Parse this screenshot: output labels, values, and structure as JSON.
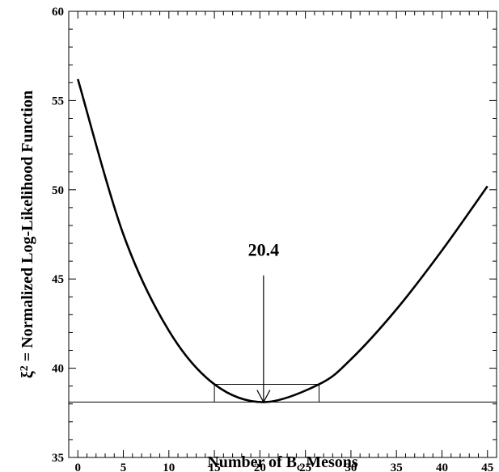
{
  "chart_data": {
    "type": "line",
    "xlabel": {
      "main": "Number of B",
      "sub": "c",
      "rest": " Mesons"
    },
    "ylabel": {
      "pre": "ξ",
      "sup": "2",
      "rest": " = Normalized Log-Likelihood Function"
    },
    "xlim": [
      -1,
      46
    ],
    "ylim": [
      35,
      60
    ],
    "x_ticks": [
      0,
      5,
      10,
      15,
      20,
      25,
      30,
      35,
      40,
      45
    ],
    "y_ticks": [
      35,
      40,
      45,
      50,
      55,
      60
    ],
    "grid": false,
    "series": [
      {
        "x": [
          0,
          5,
          10,
          15,
          20.4,
          26.5,
          30,
          35,
          40,
          45
        ],
        "y": [
          56.2,
          47.5,
          42.1,
          39.1,
          38.1,
          39.1,
          40.5,
          43.3,
          46.6,
          50.2
        ]
      }
    ],
    "minimum": {
      "x": 20.4,
      "y": 38.1
    },
    "min_line": 38.1,
    "one_sigma_line": {
      "y": 39.1,
      "x_low": 15.0,
      "x_high": 26.5
    },
    "annotation": {
      "text": "20.4",
      "x": 20.4,
      "text_y": 46.3,
      "arrow_start_y": 45.2,
      "arrow_end_y": 38.1
    }
  }
}
